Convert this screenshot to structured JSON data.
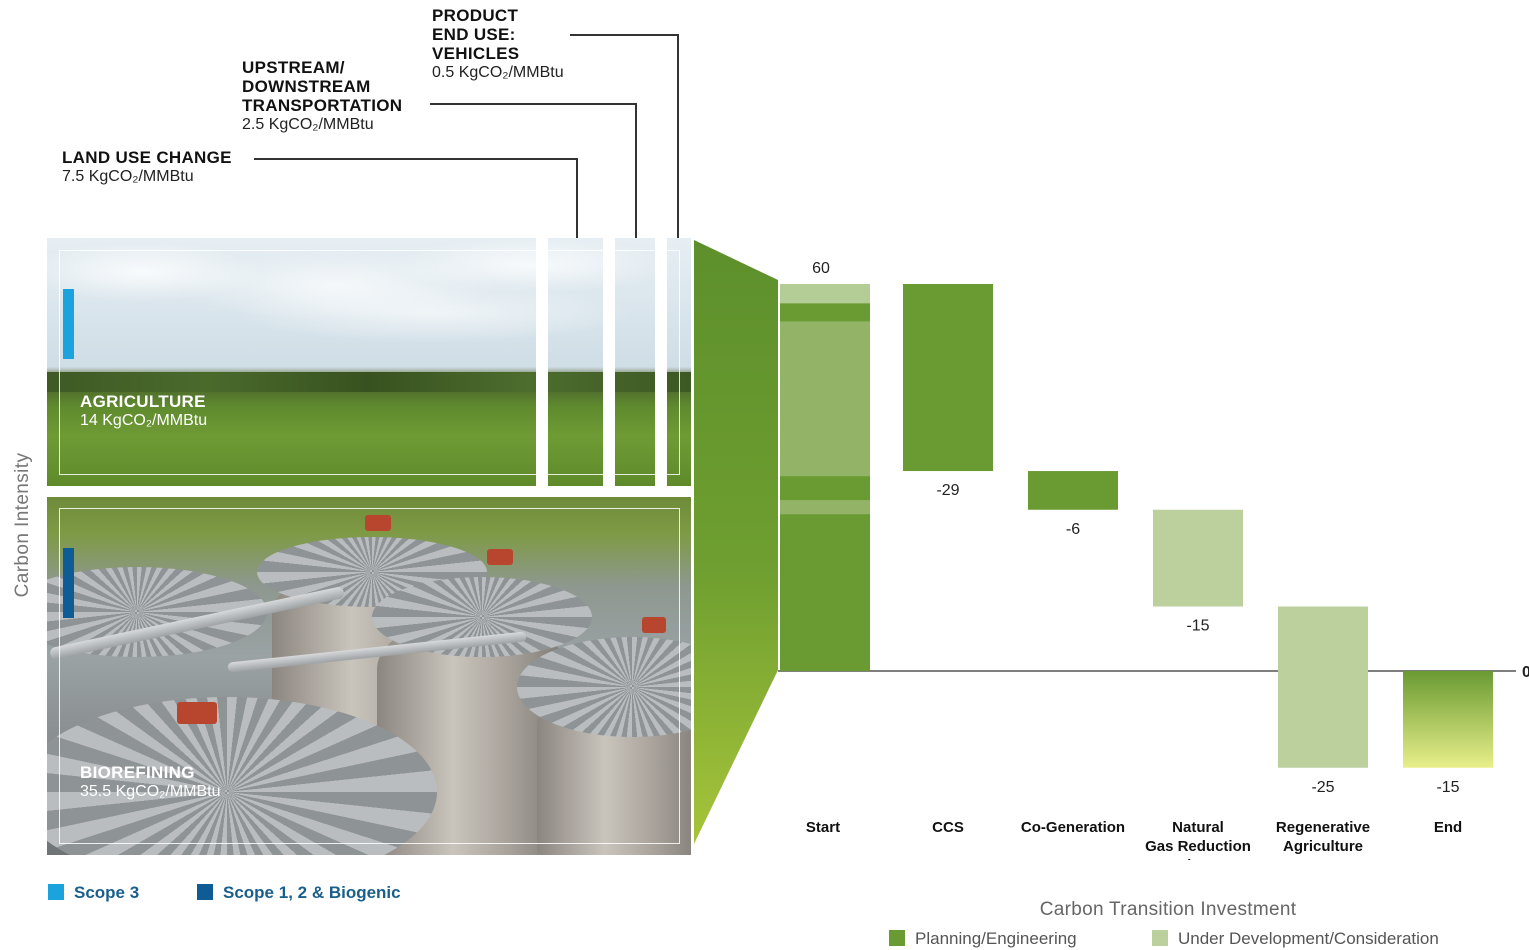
{
  "callouts": {
    "product_end_use": {
      "title_lines": [
        "PRODUCT",
        "END USE:",
        "VEHICLES"
      ],
      "value": "0.5 KgCO₂/MMBtu"
    },
    "transportation": {
      "title_lines": [
        "UPSTREAM/",
        "DOWNSTREAM",
        "TRANSPORTATION"
      ],
      "value": "2.5 KgCO₂/MMBtu"
    },
    "land_use": {
      "title_lines": [
        "LAND USE CHANGE"
      ],
      "value": "7.5 KgCO₂/MMBtu"
    }
  },
  "panels": {
    "agriculture": {
      "title": "AGRICULTURE",
      "value": "14 KgCO₂/MMBtu"
    },
    "biorefining": {
      "title": "BIOREFINING",
      "value": "35.5 KgCO₂/MMBtu"
    }
  },
  "y_axis_title": "Carbon Intensity",
  "scope_legend": [
    {
      "label": "Scope 3",
      "color": "#1aa3dc"
    },
    {
      "label": "Scope 1, 2 & Biogenic",
      "color": "#0d5c96"
    }
  ],
  "chart_data": {
    "type": "bar",
    "subtype": "waterfall",
    "categories": [
      [
        "Start"
      ],
      [
        "CCS"
      ],
      [
        "Co-Generation"
      ],
      [
        "Natural",
        "Gas Reduction",
        "& Replacement"
      ],
      [
        "Regenerative",
        "Agriculture"
      ],
      [
        "End"
      ]
    ],
    "values": [
      60,
      -29,
      -6,
      -15,
      -25,
      -15
    ],
    "value_labels": [
      "60",
      "-29",
      "-6",
      "-15",
      "-25",
      "-15"
    ],
    "bar_status": [
      "planning",
      "planning",
      "planning",
      "development",
      "development",
      "total"
    ],
    "zero_label": "0",
    "xlabel": "Carbon Transition Investment",
    "ylabel": "Carbon Intensity",
    "ylim": [
      -17,
      60
    ],
    "legend": [
      {
        "label": "Planning/Engineering",
        "color": "#6a9a32"
      },
      {
        "label": "Under Development/Consideration",
        "color": "#bcd09e"
      }
    ]
  }
}
